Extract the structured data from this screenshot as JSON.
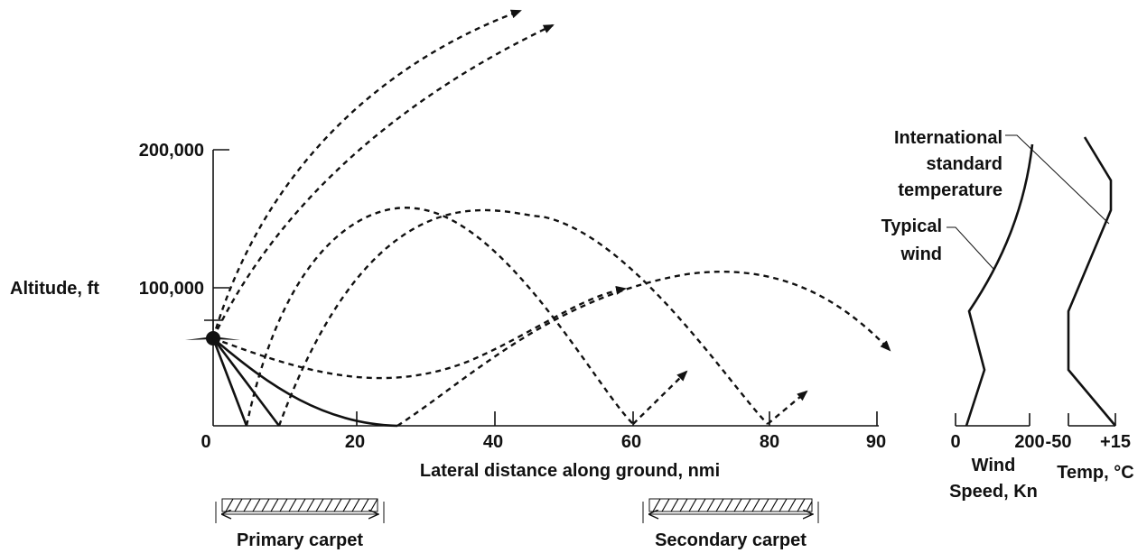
{
  "main_chart": {
    "y_label": "Altitude, ft",
    "x_label": "Lateral distance along ground, nmi",
    "y_ticks": [
      "0",
      "100,000",
      "200,000"
    ],
    "x_ticks": [
      "20",
      "40",
      "60",
      "80",
      "90"
    ],
    "y_tick_values": [
      0,
      100000,
      200000
    ],
    "x_tick_values": [
      20,
      40,
      60,
      80,
      90
    ]
  },
  "carpets": {
    "primary": "Primary carpet",
    "secondary": "Secondary carpet"
  },
  "wind_panel": {
    "label_line1": "Wind",
    "label_line2": "Speed, Kn",
    "tick_min": "0",
    "tick_max": "200",
    "annotation_line1": "Typical",
    "annotation_line2": "wind"
  },
  "temp_panel": {
    "label": "Temp, °C",
    "tick_min": "-50",
    "tick_max": "+15",
    "annotation_line1": "International",
    "annotation_line2": "standard",
    "annotation_line3": "temperature"
  }
}
